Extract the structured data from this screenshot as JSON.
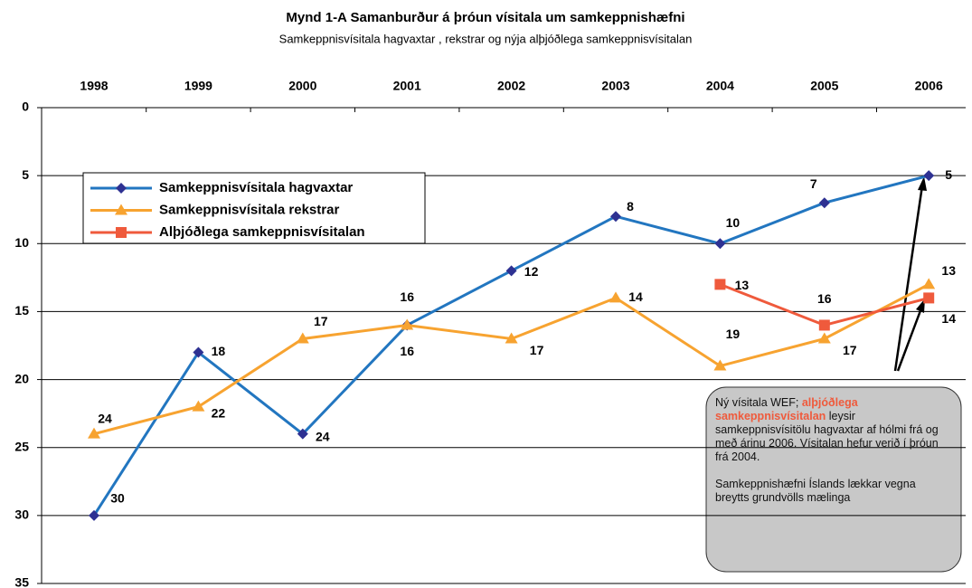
{
  "chart_data": {
    "type": "line",
    "title": "Mynd 1-A Samanburður á þróun vísitala um samkeppnishæfni",
    "subtitle": "Samkeppnisvísitala hagvaxtar , rekstrar og nýja alþjóðlega samkeppnisvísitalan",
    "categories": [
      "1998",
      "1999",
      "2000",
      "2001",
      "2002",
      "2003",
      "2004",
      "2005",
      "2006"
    ],
    "series": [
      {
        "name": "Samkeppnisvísitala hagvaxtar",
        "color": "#2276c0",
        "marker_color": "#2e3192",
        "marker": "diamond",
        "values": [
          30,
          18,
          24,
          16,
          12,
          8,
          10,
          7,
          5
        ]
      },
      {
        "name": "Samkeppnisvísitala rekstrar",
        "color": "#f7a330",
        "marker_color": "#f7a330",
        "marker": "triangle",
        "values": [
          24,
          22,
          17,
          16,
          17,
          14,
          19,
          17,
          13
        ]
      },
      {
        "name": "Alþjóðlega samkeppnisvísitalan",
        "color": "#ef5a3c",
        "marker_color": "#ef5a3c",
        "marker": "square",
        "values": [
          null,
          null,
          null,
          null,
          null,
          null,
          13,
          16,
          14
        ]
      }
    ],
    "ylim": [
      0,
      35
    ],
    "yticks": [
      0,
      5,
      10,
      15,
      20,
      25,
      30,
      35
    ],
    "y_reversed": true,
    "x_axis_position": "top",
    "grid": true,
    "annotation": {
      "text_before": "Ný vísitala WEF; ",
      "highlight": "alþjóðlega samkeppnisvísitalan",
      "text_after": " leysir samkeppnisvísitölu hagvaxtar af hólmi frá og með árinu 2006. Vísitalan hefur verið í þróun frá 2004.",
      "note": "Samkeppnishæfni Íslands lækkar vegna breytts grundvölls mælinga"
    }
  }
}
